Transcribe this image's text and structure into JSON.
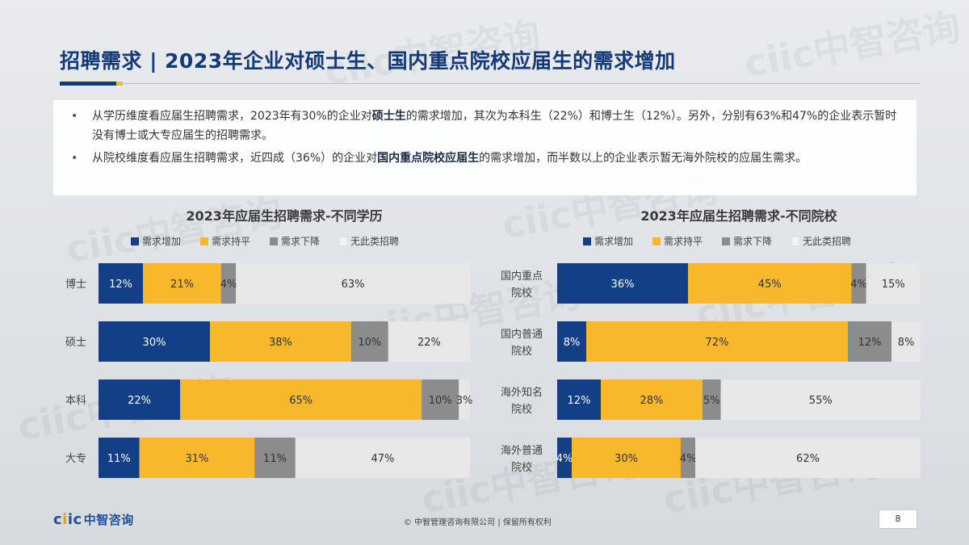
{
  "title": "招聘需求 | 2023年企业对硕士生、国内重点院校应届生的需求增加",
  "watermark": "ciic中智咨询",
  "bullets": [
    {
      "pre": "从学历维度看应届生招聘需求，2023年有30%的企业对",
      "bold": "硕士生",
      "post": "的需求增加，其次为本科生（22%）和博士生（12%）。另外，分别有63%和47%的企业表示暂时没有博士或大专应届生的招聘需求。"
    },
    {
      "pre": "从院校维度看应届生招聘需求，近四成（36%）的企业对",
      "bold": "国内重点院校应届生",
      "post": "的需求增加，而半数以上的企业表示暂无海外院校的应届生需求。"
    }
  ],
  "legend_labels": [
    "需求增加",
    "需求持平",
    "需求下降",
    "无此类招聘"
  ],
  "colors": {
    "series": [
      "#123f85",
      "#f7b82b",
      "#8c8c8c",
      "#e7e7e7"
    ],
    "label_light": "#ffffff",
    "label_dark": "#333333",
    "title": "#143a7a"
  },
  "chart_data": [
    {
      "type": "bar",
      "orientation": "horizontal",
      "stacked": true,
      "percent_stacked": true,
      "title": "2023年应届生招聘需求-不同学历",
      "categories": [
        "博士",
        "硕士",
        "本科",
        "大专"
      ],
      "series": [
        {
          "name": "需求增加",
          "values": [
            12,
            30,
            22,
            11
          ]
        },
        {
          "name": "需求持平",
          "values": [
            21,
            38,
            65,
            31
          ]
        },
        {
          "name": "需求下降",
          "values": [
            4,
            10,
            10,
            11
          ]
        },
        {
          "name": "无此类招聘",
          "values": [
            63,
            22,
            3,
            47
          ]
        }
      ],
      "value_suffix": "%",
      "legend": "top"
    },
    {
      "type": "bar",
      "orientation": "horizontal",
      "stacked": true,
      "percent_stacked": true,
      "title": "2023年应届生招聘需求-不同院校",
      "categories": [
        "国内重点院校",
        "国内普通院校",
        "海外知名院校",
        "海外普通院校"
      ],
      "series": [
        {
          "name": "需求增加",
          "values": [
            36,
            8,
            12,
            4
          ]
        },
        {
          "name": "需求持平",
          "values": [
            45,
            72,
            28,
            30
          ]
        },
        {
          "name": "需求下降",
          "values": [
            4,
            12,
            5,
            4
          ]
        },
        {
          "name": "无此类招聘",
          "values": [
            15,
            8,
            55,
            62
          ]
        }
      ],
      "value_suffix": "%",
      "legend": "top"
    }
  ],
  "footer": {
    "logo_c1": "c",
    "logo_i": "i",
    "logo_ic": "ic",
    "logo_cn": "中智咨询",
    "copyright": "© 中智管理咨询有限公司 | 保留所有权利",
    "page": "8"
  }
}
